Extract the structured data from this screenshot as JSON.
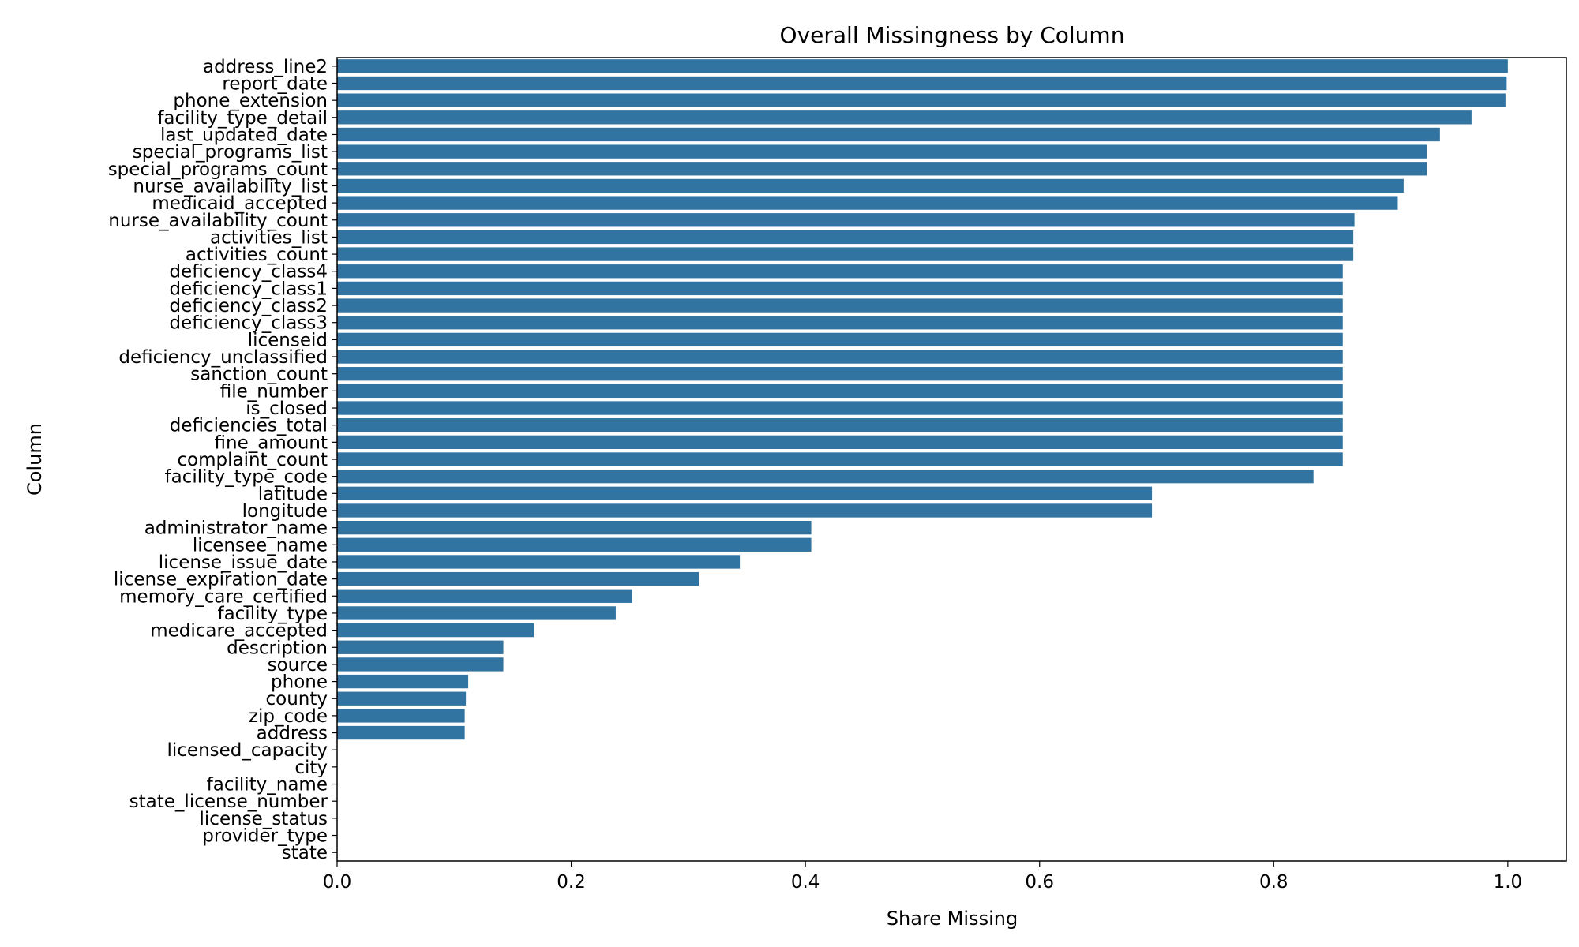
{
  "chart_data": {
    "type": "bar",
    "orientation": "horizontal",
    "title": "Overall Missingness by Column",
    "xlabel": "Share Missing",
    "ylabel": "Column",
    "xlim": [
      0.0,
      1.05
    ],
    "xticks": [
      0.0,
      0.2,
      0.4,
      0.6,
      0.8,
      1.0
    ],
    "xtick_labels": [
      "0.0",
      "0.2",
      "0.4",
      "0.6",
      "0.8",
      "1.0"
    ],
    "grid": false,
    "bar_color": "#3274a1",
    "categories": [
      "address_line2",
      "report_date",
      "phone_extension",
      "facility_type_detail",
      "last_updated_date",
      "special_programs_list",
      "special_programs_count",
      "nurse_availability_list",
      "medicaid_accepted",
      "nurse_availability_count",
      "activities_list",
      "activities_count",
      "deficiency_class4",
      "deficiency_class1",
      "deficiency_class2",
      "deficiency_class3",
      "licenseid",
      "deficiency_unclassified",
      "sanction_count",
      "file_number",
      "is_closed",
      "deficiencies_total",
      "fine_amount",
      "complaint_count",
      "facility_type_code",
      "latitude",
      "longitude",
      "administrator_name",
      "licensee_name",
      "license_issue_date",
      "license_expiration_date",
      "memory_care_certified",
      "facility_type",
      "medicare_accepted",
      "description",
      "source",
      "phone",
      "county",
      "zip_code",
      "address",
      "licensed_capacity",
      "city",
      "facility_name",
      "state_license_number",
      "license_status",
      "provider_type",
      "state"
    ],
    "values": [
      1.0,
      0.999,
      0.998,
      0.969,
      0.942,
      0.931,
      0.931,
      0.911,
      0.906,
      0.869,
      0.868,
      0.868,
      0.859,
      0.859,
      0.859,
      0.859,
      0.859,
      0.859,
      0.859,
      0.859,
      0.859,
      0.859,
      0.859,
      0.859,
      0.834,
      0.696,
      0.696,
      0.405,
      0.405,
      0.344,
      0.309,
      0.252,
      0.238,
      0.168,
      0.142,
      0.142,
      0.112,
      0.11,
      0.109,
      0.109,
      0.0,
      0.0,
      0.0,
      0.0,
      0.0,
      0.0,
      0.0
    ]
  }
}
